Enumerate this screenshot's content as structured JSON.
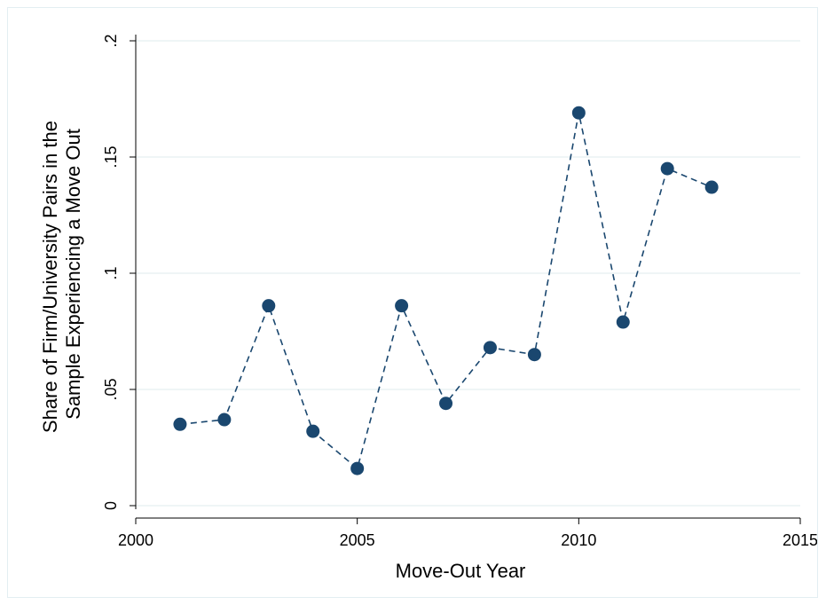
{
  "chart_data": {
    "type": "line",
    "title": "",
    "xlabel": "Move-Out Year",
    "ylabel_lines": [
      "Share of Firm/University Pairs in the",
      "Sample Experiencing a Move Out"
    ],
    "xlim": [
      2000,
      2015
    ],
    "ylim": [
      0,
      0.2
    ],
    "x_ticks": [
      2000,
      2005,
      2010,
      2015
    ],
    "x_tick_labels": [
      "2000",
      "2005",
      "2010",
      "2015"
    ],
    "y_ticks": [
      0,
      0.05,
      0.1,
      0.15,
      0.2
    ],
    "y_tick_labels": [
      "0",
      ".05",
      ".1",
      ".15",
      ".2"
    ],
    "grid": true,
    "line_style": "dashed",
    "marker": "circle",
    "color": "#1a476f",
    "grid_color": "#eaf2f3",
    "series": [
      {
        "x": [
          2001,
          2002,
          2003,
          2004,
          2005,
          2006,
          2007,
          2008,
          2009,
          2010,
          2011,
          2012,
          2013
        ],
        "values": [
          0.035,
          0.037,
          0.086,
          0.032,
          0.016,
          0.086,
          0.044,
          0.068,
          0.065,
          0.169,
          0.079,
          0.145,
          0.137
        ]
      }
    ]
  }
}
